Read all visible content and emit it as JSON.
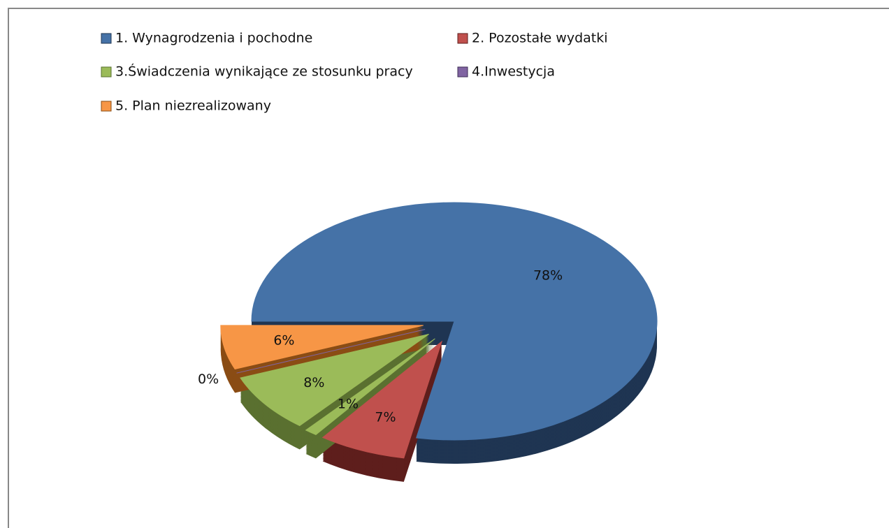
{
  "chart_data": {
    "type": "pie",
    "categories": [
      "1. Wynagrodzenia i pochodne",
      "2. Pozostałe wydatki",
      null,
      "3.Świadczenia wynikające ze stosunku pracy",
      "4.Inwestycja",
      "5. Plan niezrealizowany"
    ],
    "values": [
      78,
      7,
      1,
      8,
      0,
      6
    ],
    "value_labels": [
      "78%",
      "7%",
      "1%",
      "8%",
      "0%",
      "6%"
    ],
    "colors": [
      "#4572a7",
      "#c0504d",
      "#9bbb59",
      "#9bbb59",
      "#8064a2",
      "#f79646"
    ],
    "side_colors": [
      "#1f3552",
      "#5e1e1c",
      "#5a7030",
      "#5a7030",
      "#3e2d55",
      "#8a4c14"
    ]
  }
}
